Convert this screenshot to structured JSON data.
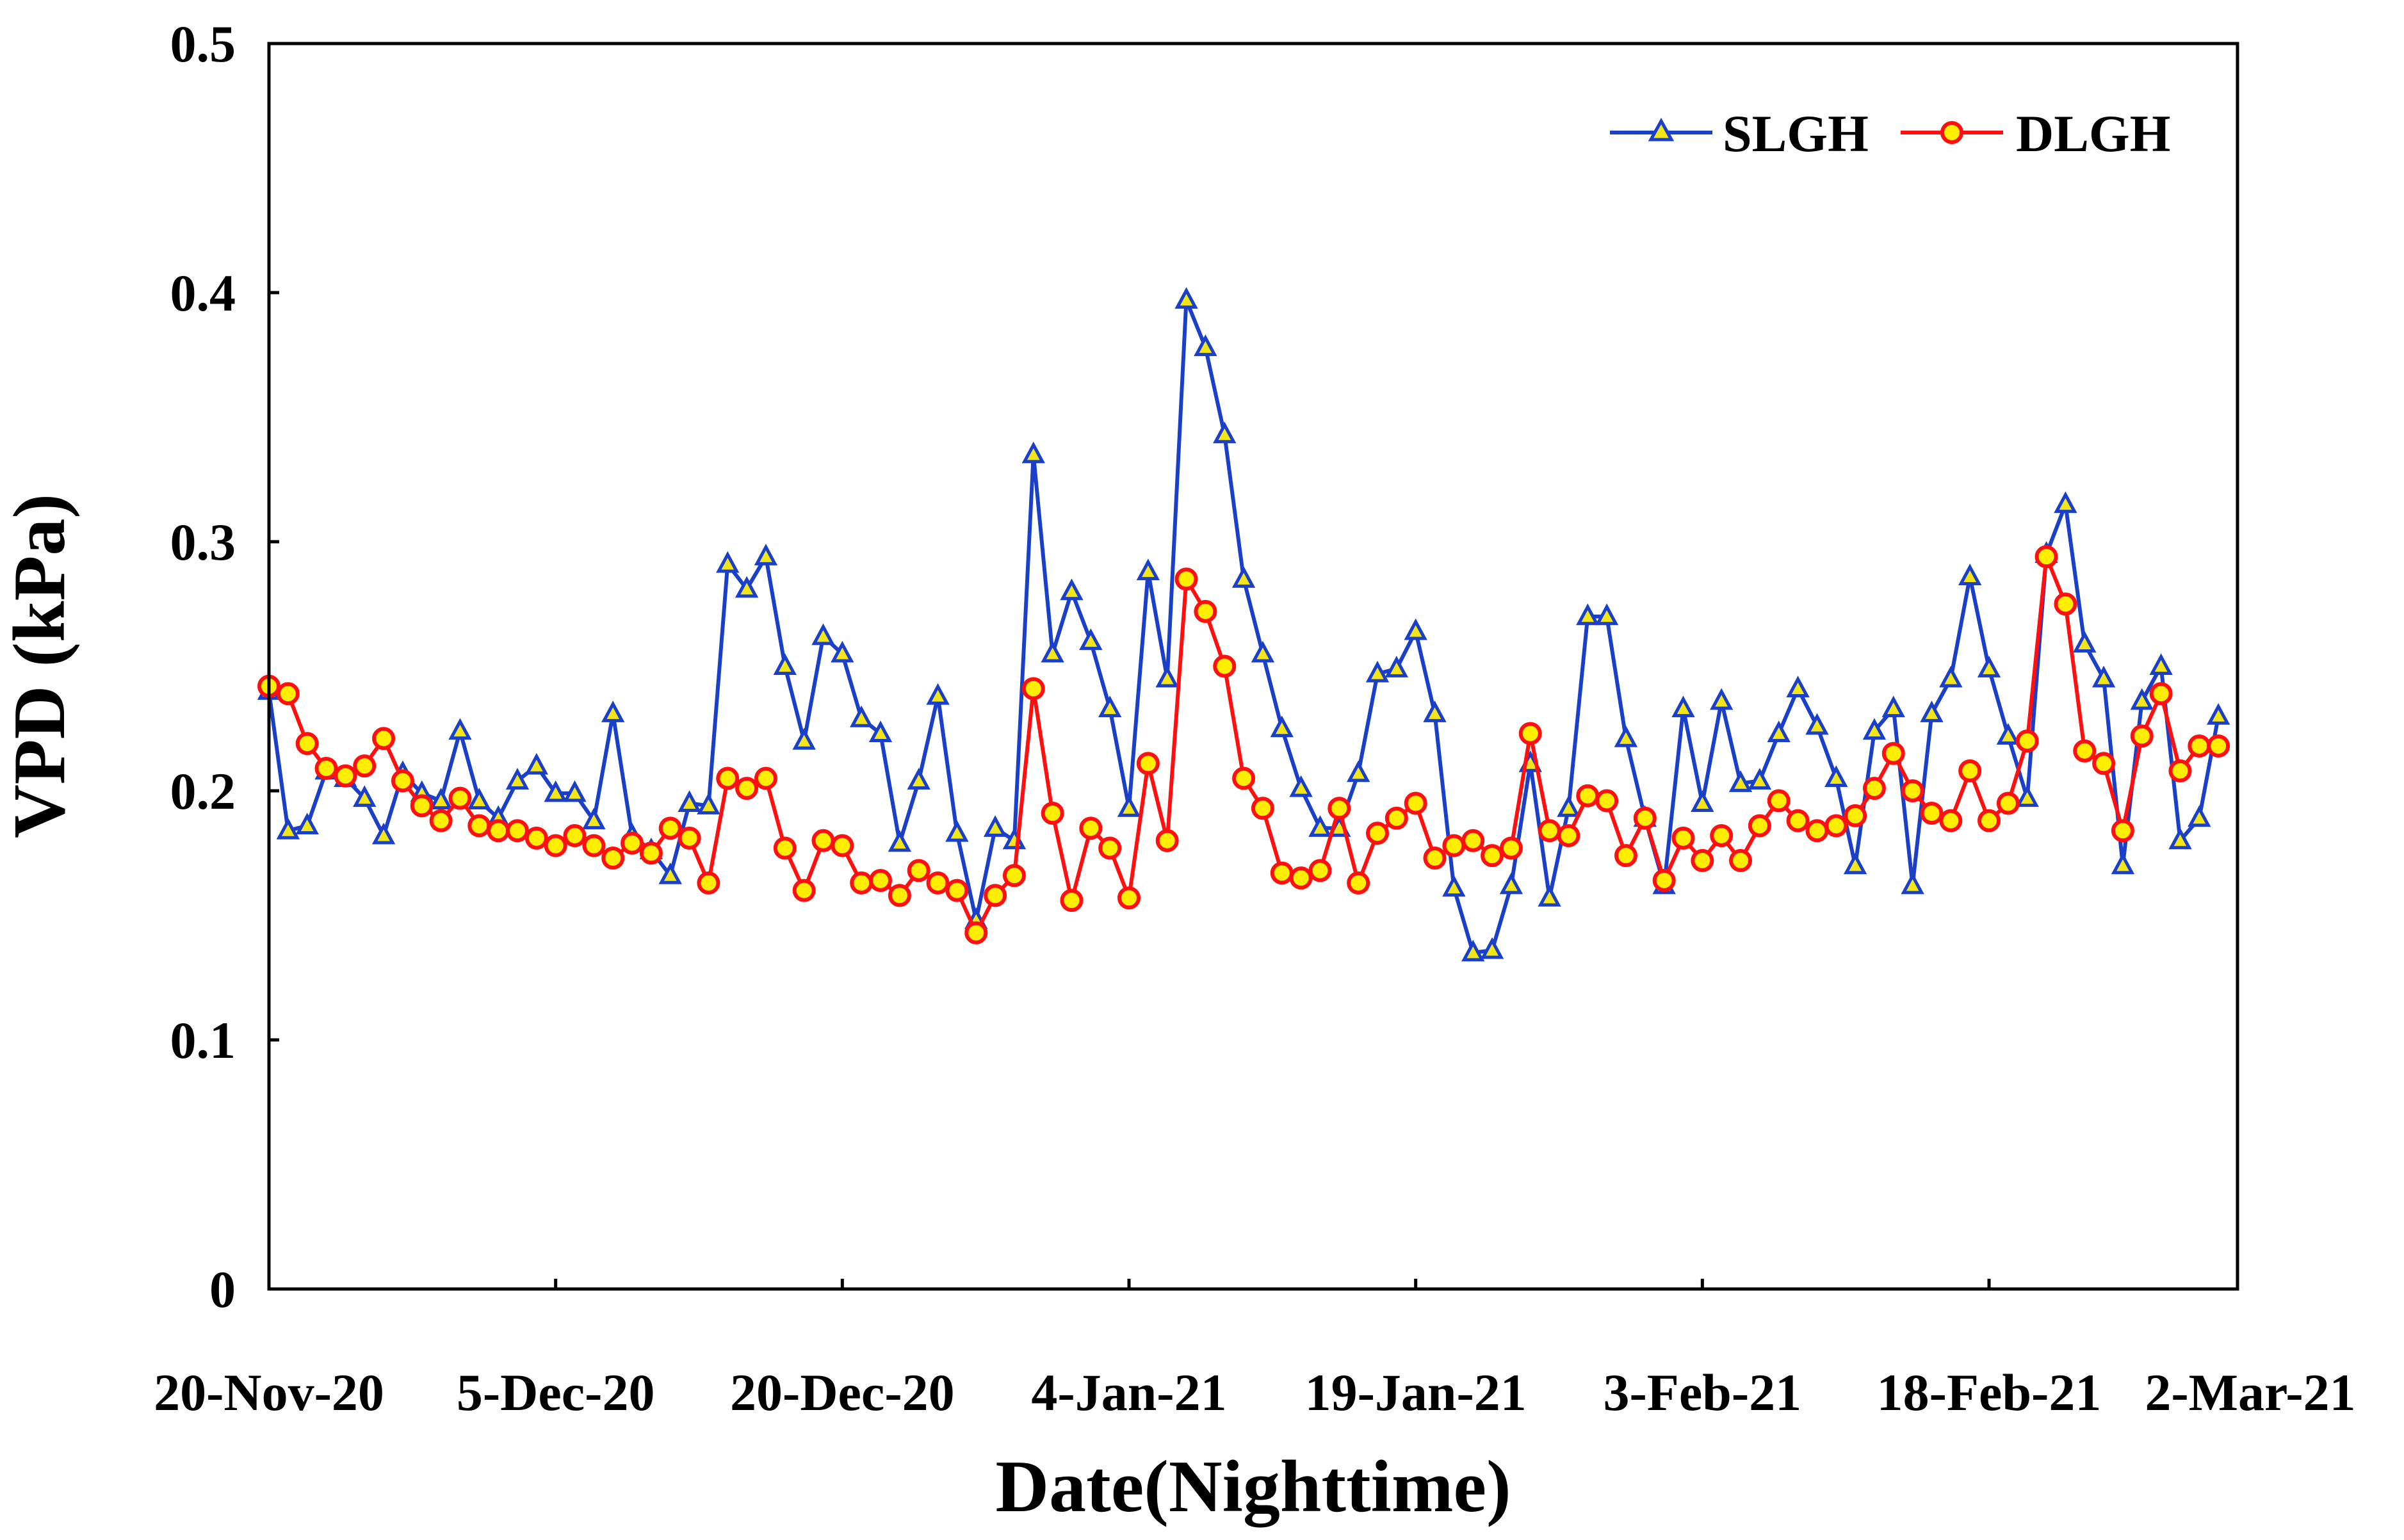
{
  "chart_data": {
    "type": "line",
    "title": "",
    "xlabel": "Date(Nighttime)",
    "ylabel": "VPD (kPa)",
    "ylim": [
      0,
      0.5
    ],
    "yticks": [
      "0",
      "0.1",
      "0.2",
      "0.3",
      "0.4",
      "0.5"
    ],
    "yticks_values": [
      0,
      0.1,
      0.2,
      0.3,
      0.4,
      0.5
    ],
    "xticks": [
      {
        "label": "20-Nov-20",
        "day": 0
      },
      {
        "label": "5-Dec-20",
        "day": 15
      },
      {
        "label": "20-Dec-20",
        "day": 30
      },
      {
        "label": "4-Jan-21",
        "day": 45
      },
      {
        "label": "19-Jan-21",
        "day": 60
      },
      {
        "label": "3-Feb-21",
        "day": 75
      },
      {
        "label": "18-Feb-21",
        "day": 90
      },
      {
        "label": "2-Mar-21",
        "day": 103
      }
    ],
    "x_unit": "days since 20-Nov-20",
    "xlim": [
      0,
      103
    ],
    "legend_position": "top-right",
    "series": [
      {
        "name": "SLGH",
        "color": "#1a3fc8",
        "marker": "triangle",
        "marker_fill": "#f2e51a",
        "values": [
          0.24,
          0.184,
          0.186,
          0.208,
          0.205,
          0.197,
          0.182,
          0.207,
          0.199,
          0.196,
          0.224,
          0.196,
          0.189,
          0.204,
          0.21,
          0.199,
          0.199,
          0.188,
          0.231,
          0.182,
          0.176,
          0.166,
          0.195,
          0.194,
          0.291,
          0.281,
          0.294,
          0.25,
          0.22,
          0.262,
          0.255,
          0.229,
          0.223,
          0.179,
          0.204,
          0.238,
          0.183,
          0.148,
          0.185,
          0.18,
          0.335,
          0.255,
          0.28,
          0.26,
          0.233,
          0.193,
          0.288,
          0.245,
          0.397,
          0.378,
          0.343,
          0.285,
          0.255,
          0.225,
          0.201,
          0.185,
          0.185,
          0.207,
          0.247,
          0.249,
          0.264,
          0.231,
          0.161,
          0.135,
          0.136,
          0.162,
          0.211,
          0.157,
          0.193,
          0.27,
          0.27,
          0.221,
          0.189,
          0.162,
          0.233,
          0.195,
          0.236,
          0.203,
          0.204,
          0.223,
          0.241,
          0.226,
          0.205,
          0.17,
          0.224,
          0.233,
          0.162,
          0.231,
          0.245,
          0.286,
          0.249,
          0.222,
          0.197,
          0.295,
          0.315,
          0.259,
          0.245,
          0.17,
          0.236,
          0.25,
          0.18,
          0.189,
          0.23
        ]
      },
      {
        "name": "DLGH",
        "color": "#ff1010",
        "marker": "circle",
        "marker_fill": "#ffee00",
        "values": [
          0.242,
          0.239,
          0.219,
          0.209,
          0.206,
          0.21,
          0.221,
          0.204,
          0.194,
          0.188,
          0.197,
          0.186,
          0.184,
          0.184,
          0.181,
          0.178,
          0.182,
          0.178,
          0.173,
          0.179,
          0.175,
          0.185,
          0.181,
          0.163,
          0.205,
          0.201,
          0.205,
          0.177,
          0.16,
          0.18,
          0.178,
          0.163,
          0.164,
          0.158,
          0.168,
          0.163,
          0.16,
          0.143,
          0.158,
          0.166,
          0.241,
          0.191,
          0.156,
          0.185,
          0.177,
          0.157,
          0.211,
          0.18,
          0.285,
          0.272,
          0.25,
          0.205,
          0.193,
          0.167,
          0.165,
          0.168,
          0.193,
          0.163,
          0.183,
          0.189,
          0.195,
          0.173,
          0.178,
          0.18,
          0.174,
          0.177,
          0.223,
          0.184,
          0.182,
          0.198,
          0.196,
          0.174,
          0.189,
          0.164,
          0.181,
          0.172,
          0.182,
          0.172,
          0.186,
          0.196,
          0.188,
          0.184,
          0.186,
          0.19,
          0.201,
          0.215,
          0.2,
          0.191,
          0.188,
          0.208,
          0.188,
          0.195,
          0.22,
          0.294,
          0.275,
          0.216,
          0.211,
          0.184,
          0.222,
          0.239,
          0.208,
          0.218,
          0.218
        ]
      }
    ]
  }
}
